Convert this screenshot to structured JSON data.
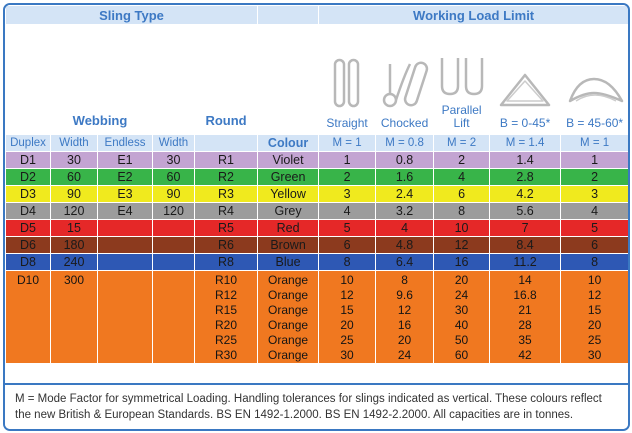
{
  "headers": {
    "sling_type": "Sling Type",
    "working_load_limit": "Working Load Limit",
    "webbing": "Webbing",
    "round": "Round",
    "colour": "Colour",
    "straight": "Straight",
    "chocked": "Chocked",
    "parallel_lift": "Parallel Lift",
    "b_0_45": "B = 0-45*",
    "b_45_60": "B = 45-60*",
    "duplex": "Duplex",
    "width1": "Width",
    "endless": "Endless",
    "width2": "Width",
    "m_straight": "M = 1",
    "m_chocked": "M = 0.8",
    "m_parallel": "M = 2",
    "m_b045": "M = 1.4",
    "m_b4560": "M = 1"
  },
  "rows": [
    {
      "duplex": "D1",
      "width1": "30",
      "endless": "E1",
      "width2": "30",
      "round": "R1",
      "colour": "Violet",
      "straight": "1",
      "chocked": "0.8",
      "parallel": "2",
      "b045": "1.4",
      "b4560": "1",
      "bg": "#c3a4d2"
    },
    {
      "duplex": "D2",
      "width1": "60",
      "endless": "E2",
      "width2": "60",
      "round": "R2",
      "colour": "Green",
      "straight": "2",
      "chocked": "1.6",
      "parallel": "4",
      "b045": "2.8",
      "b4560": "2",
      "bg": "#38b449"
    },
    {
      "duplex": "D3",
      "width1": "90",
      "endless": "E3",
      "width2": "90",
      "round": "R3",
      "colour": "Yellow",
      "straight": "3",
      "chocked": "2.4",
      "parallel": "6",
      "b045": "4.2",
      "b4560": "3",
      "bg": "#f0ea1e"
    },
    {
      "duplex": "D4",
      "width1": "120",
      "endless": "E4",
      "width2": "120",
      "round": "R4",
      "colour": "Grey",
      "straight": "4",
      "chocked": "3.2",
      "parallel": "8",
      "b045": "5.6",
      "b4560": "4",
      "bg": "#9c9c9c"
    },
    {
      "duplex": "D5",
      "width1": "15",
      "endless": "",
      "width2": "",
      "round": "R5",
      "colour": "Red",
      "straight": "5",
      "chocked": "4",
      "parallel": "10",
      "b045": "7",
      "b4560": "5",
      "bg": "#e52828"
    },
    {
      "duplex": "D6",
      "width1": "180",
      "endless": "",
      "width2": "",
      "round": "R6",
      "colour": "Brown",
      "straight": "6",
      "chocked": "4.8",
      "parallel": "12",
      "b045": "8.4",
      "b4560": "6",
      "bg": "#8c3a1e"
    },
    {
      "duplex": "D8",
      "width1": "240",
      "endless": "",
      "width2": "",
      "round": "R8",
      "colour": "Blue",
      "straight": "8",
      "chocked": "6.4",
      "parallel": "16",
      "b045": "11.2",
      "b4560": "8",
      "bg": "#2e58b4"
    }
  ],
  "orange_row": {
    "duplex": "D10",
    "width1": "300",
    "bg": "#f07820",
    "entries": [
      {
        "round": "R10",
        "colour": "Orange",
        "straight": "10",
        "chocked": "8",
        "parallel": "20",
        "b045": "14",
        "b4560": "10"
      },
      {
        "round": "R12",
        "colour": "Orange",
        "straight": "12",
        "chocked": "9.6",
        "parallel": "24",
        "b045": "16.8",
        "b4560": "12"
      },
      {
        "round": "R15",
        "colour": "Orange",
        "straight": "15",
        "chocked": "12",
        "parallel": "30",
        "b045": "21",
        "b4560": "15"
      },
      {
        "round": "R20",
        "colour": "Orange",
        "straight": "20",
        "chocked": "16",
        "parallel": "40",
        "b045": "28",
        "b4560": "20"
      },
      {
        "round": "R25",
        "colour": "Orange",
        "straight": "25",
        "chocked": "20",
        "parallel": "50",
        "b045": "35",
        "b4560": "25"
      },
      {
        "round": "R30",
        "colour": "Orange",
        "straight": "30",
        "chocked": "24",
        "parallel": "60",
        "b045": "42",
        "b4560": "30"
      }
    ]
  },
  "footnote": "M = Mode Factor for symmetrical Loading.  Handling tolerances for slings indicated as vertical. These colours reflect the new British & European Standards. BS EN 1492-1.2000. BS EN 1492-2.2000. All capacities are in tonnes.",
  "icons": {
    "straight": "straight-sling-icon",
    "chocked": "chocked-sling-icon",
    "parallel": "parallel-lift-icon",
    "b045": "basket-0-45-icon",
    "b4560": "basket-45-60-icon"
  },
  "colors": {
    "header_blue": "#3d79c4",
    "header_bg": "#d4e4f6",
    "border_blue": "#3a78c2"
  }
}
